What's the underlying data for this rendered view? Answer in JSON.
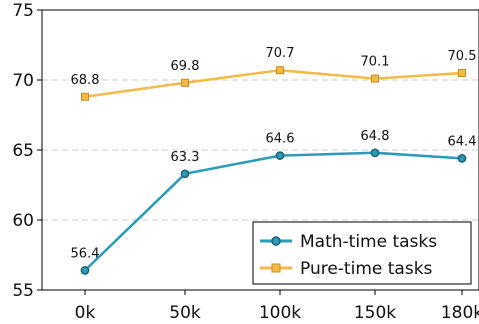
{
  "chart_data": {
    "type": "line",
    "x": [
      "0k",
      "50k",
      "100k",
      "150k",
      "180k"
    ],
    "series": [
      {
        "name": "Math-time tasks",
        "values": [
          56.4,
          63.3,
          64.6,
          64.8,
          64.4
        ],
        "color": "#2a9bb8",
        "marker": "circle"
      },
      {
        "name": "Pure-time tasks",
        "values": [
          68.8,
          69.8,
          70.7,
          70.1,
          70.5
        ],
        "color": "#f5b94a",
        "marker": "square"
      }
    ],
    "yticks": [
      "55",
      "60",
      "65",
      "70",
      "75"
    ],
    "ylim": [
      55,
      75
    ],
    "grid": "horizontal-dashed",
    "legend": "bottom-right",
    "title": "",
    "xlabel": "",
    "ylabel": ""
  }
}
